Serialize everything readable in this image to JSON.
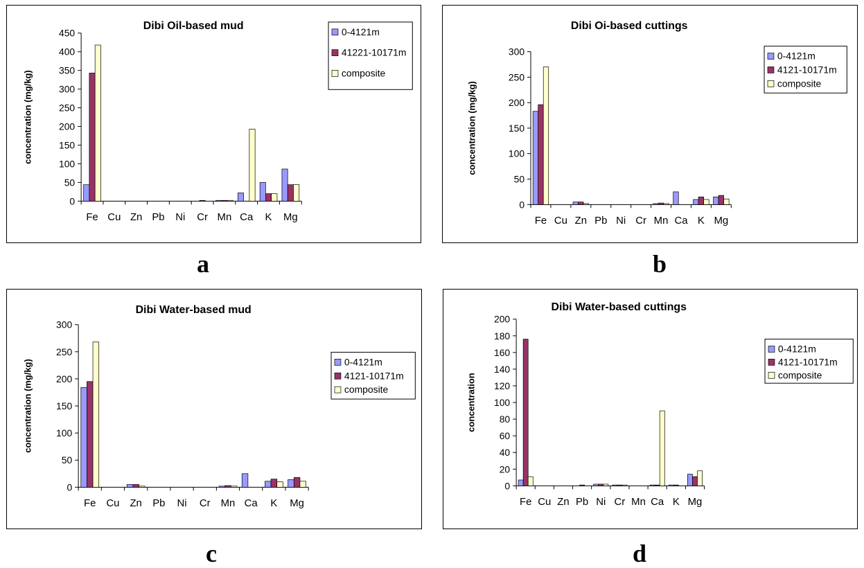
{
  "colors": {
    "s1": "#9999ff",
    "s2": "#993366",
    "s3": "#ffffcc",
    "axis": "#000000"
  },
  "panel_letters": [
    "a",
    "b",
    "c",
    "d"
  ],
  "chart_data": [
    {
      "type": "bar",
      "title": "Dibi Oil-based mud",
      "ylabel": "concentration (mg/kg)",
      "xlabel": "",
      "ylim": [
        0,
        450
      ],
      "yticks": [
        0,
        50,
        100,
        150,
        200,
        250,
        300,
        350,
        400,
        450
      ],
      "legend_position": "top-right",
      "categories": [
        "Fe",
        "Cu",
        "Zn",
        "Pb",
        "Ni",
        "Cr",
        "Mn",
        "Ca",
        "K",
        "Mg"
      ],
      "series": [
        {
          "name": "0-4121m",
          "values": [
            44,
            0,
            0,
            0,
            0,
            0,
            2,
            22,
            50,
            86
          ]
        },
        {
          "name": "41221-10171m",
          "values": [
            343,
            0,
            0,
            0,
            0,
            2,
            2,
            0,
            20,
            44
          ]
        },
        {
          "name": "composite",
          "values": [
            418,
            0,
            0,
            0,
            0,
            0,
            2,
            193,
            20,
            44
          ]
        }
      ]
    },
    {
      "type": "bar",
      "title": "Dibi Oi-based cuttings",
      "ylabel": "concentration (mg/kg)",
      "xlabel": "",
      "ylim": [
        0,
        300
      ],
      "yticks": [
        0,
        50,
        100,
        150,
        200,
        250,
        300
      ],
      "legend_position": "top-right",
      "categories": [
        "Fe",
        "Cu",
        "Zn",
        "Pb",
        "Ni",
        "Cr",
        "Mn",
        "Ca",
        "K",
        "Mg"
      ],
      "series": [
        {
          "name": "0-4121m",
          "values": [
            183,
            0,
            5,
            0,
            0,
            0,
            2,
            25,
            10,
            15
          ]
        },
        {
          "name": "4121-10171m",
          "values": [
            196,
            0,
            5,
            0,
            0,
            0,
            3,
            0,
            15,
            18
          ]
        },
        {
          "name": "composite",
          "values": [
            270,
            0,
            2,
            0,
            0,
            0,
            2,
            0,
            10,
            11
          ]
        }
      ]
    },
    {
      "type": "bar",
      "title": "Dibi Water-based mud",
      "ylabel": "concentration (mg/kg)",
      "xlabel": "",
      "ylim": [
        0,
        300
      ],
      "yticks": [
        0,
        50,
        100,
        150,
        200,
        250,
        300
      ],
      "legend_position": "right",
      "categories": [
        "Fe",
        "Cu",
        "Zn",
        "Pb",
        "Ni",
        "Cr",
        "Mn",
        "Ca",
        "K",
        "Mg"
      ],
      "series": [
        {
          "name": "0-4121m",
          "values": [
            184,
            0,
            5,
            0,
            0,
            0,
            2,
            25,
            11,
            14
          ]
        },
        {
          "name": "4121-10171m",
          "values": [
            195,
            0,
            5,
            0,
            0,
            0,
            3,
            0,
            15,
            18
          ]
        },
        {
          "name": "composite",
          "values": [
            268,
            0,
            2,
            0,
            0,
            0,
            2,
            0,
            10,
            11
          ]
        }
      ]
    },
    {
      "type": "bar",
      "title": "Dibi Water-based cuttings",
      "ylabel": "concentration",
      "xlabel": "",
      "ylim": [
        0,
        200
      ],
      "yticks": [
        0,
        20,
        40,
        60,
        80,
        100,
        120,
        140,
        160,
        180,
        200
      ],
      "legend_position": "right",
      "categories": [
        "Fe",
        "Cu",
        "Zn",
        "Pb",
        "Ni",
        "Cr",
        "Mn",
        "Ca",
        "K",
        "Mg"
      ],
      "series": [
        {
          "name": "0-4121m",
          "values": [
            7,
            0,
            0,
            0,
            2,
            1,
            0,
            1,
            1,
            14
          ]
        },
        {
          "name": "4121-10171m",
          "values": [
            176,
            0,
            0,
            1,
            2,
            1,
            0,
            1,
            1,
            11
          ]
        },
        {
          "name": "composite",
          "values": [
            11,
            0,
            0,
            0,
            2,
            1,
            0,
            90,
            0,
            18
          ]
        }
      ]
    }
  ]
}
